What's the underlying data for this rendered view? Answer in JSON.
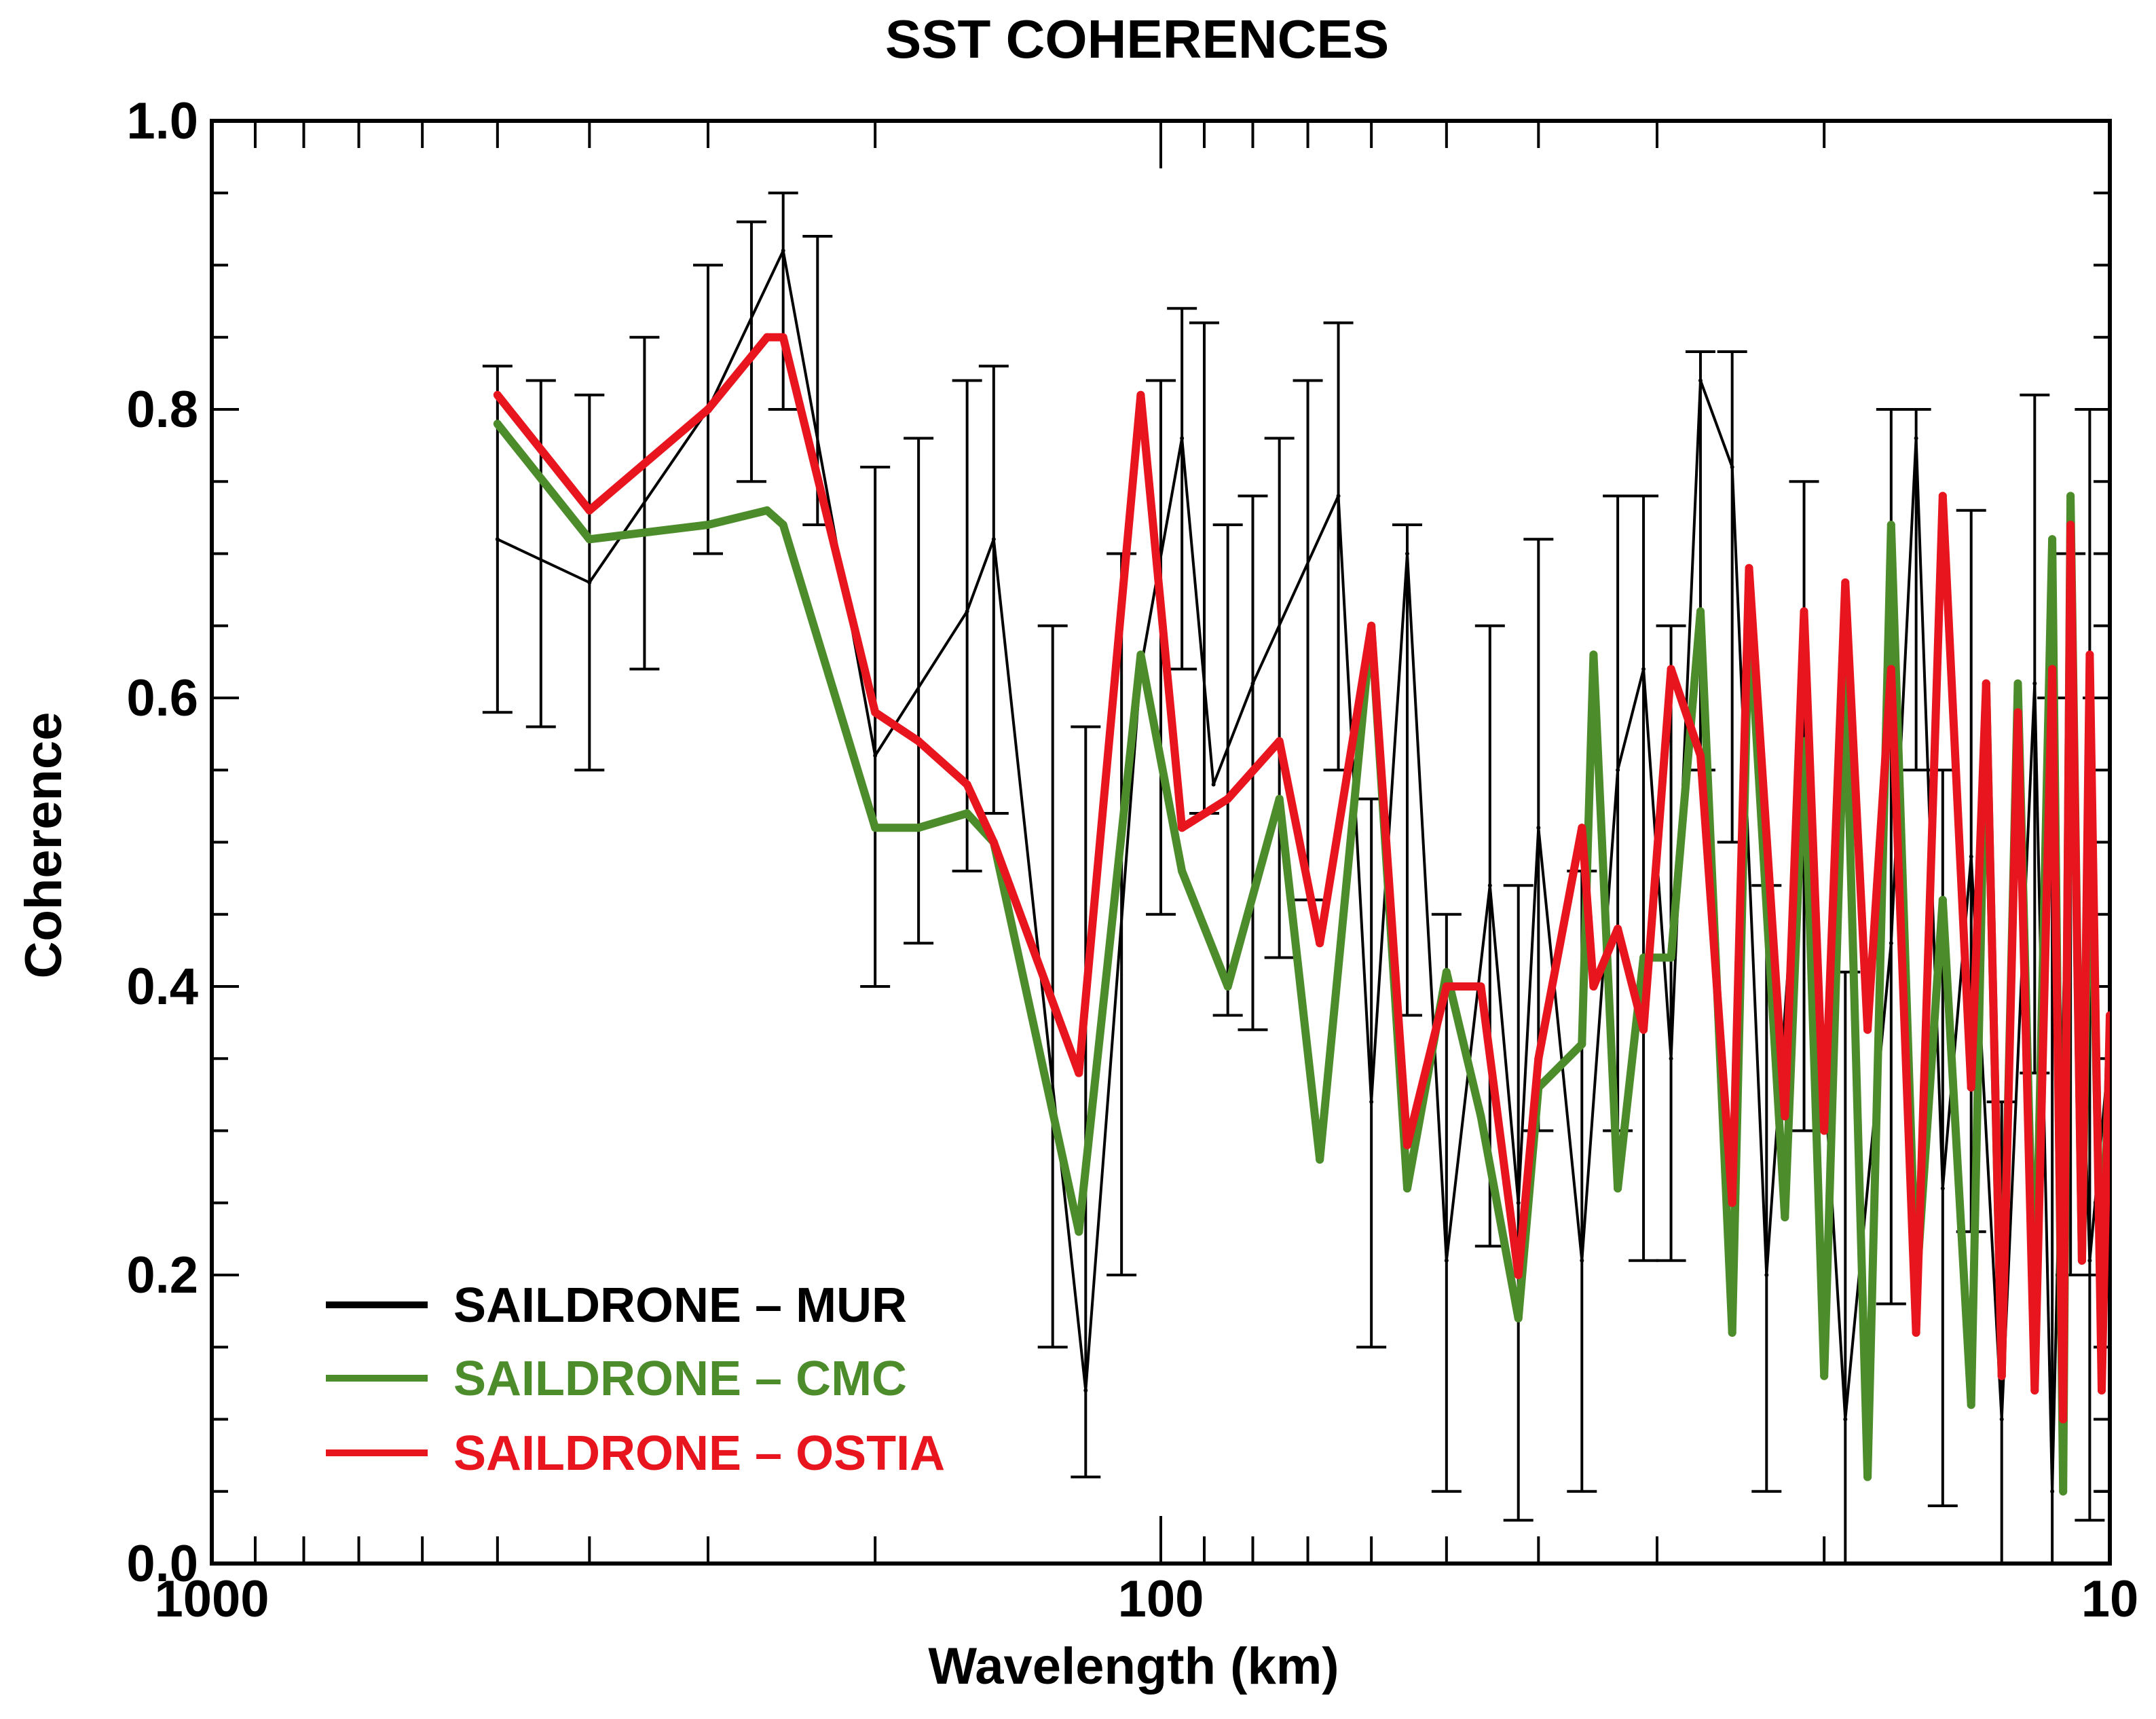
{
  "chart_data": {
    "type": "line",
    "title": "SST COHERENCES",
    "xlabel": "Wavelength (km)",
    "ylabel": "Coherence",
    "xscale": "log",
    "xlim": [
      1000,
      10
    ],
    "ylim": [
      0.0,
      1.0
    ],
    "x_ticks": [
      {
        "value": 1000,
        "label": "1000"
      },
      {
        "value": 100,
        "label": "100"
      },
      {
        "value": 10,
        "label": "10"
      }
    ],
    "y_ticks": [
      {
        "value": 0.0,
        "label": "0.0"
      },
      {
        "value": 0.2,
        "label": "0.2"
      },
      {
        "value": 0.4,
        "label": "0.4"
      },
      {
        "value": 0.6,
        "label": "0.6"
      },
      {
        "value": 0.8,
        "label": "0.8"
      },
      {
        "value": 1.0,
        "label": "1.0"
      }
    ],
    "legend_position": "bottom-left",
    "series": [
      {
        "name": "SAILDRONE – MUR",
        "color": "#000000",
        "error_bars": true,
        "points": [
          [
            500,
            0.71
          ],
          [
            400,
            0.68
          ],
          [
            300,
            0.8
          ],
          [
            250,
            0.91
          ],
          [
            200,
            0.56
          ],
          [
            160,
            0.66
          ],
          [
            150,
            0.71
          ],
          [
            120,
            0.12
          ],
          [
            105,
            0.62
          ],
          [
            95,
            0.78
          ],
          [
            88,
            0.54
          ],
          [
            80,
            0.61
          ],
          [
            65,
            0.74
          ],
          [
            60,
            0.32
          ],
          [
            55,
            0.7
          ],
          [
            50,
            0.21
          ],
          [
            45,
            0.47
          ],
          [
            42,
            0.25
          ],
          [
            40,
            0.51
          ],
          [
            36,
            0.21
          ],
          [
            33,
            0.55
          ],
          [
            31,
            0.62
          ],
          [
            29,
            0.35
          ],
          [
            27,
            0.82
          ],
          [
            25,
            0.76
          ],
          [
            23,
            0.2
          ],
          [
            21,
            0.57
          ],
          [
            19,
            0.1
          ],
          [
            17,
            0.43
          ],
          [
            16,
            0.78
          ],
          [
            15,
            0.26
          ],
          [
            14,
            0.49
          ],
          [
            13,
            0.1
          ],
          [
            12,
            0.61
          ],
          [
            11.5,
            0.05
          ],
          [
            11,
            0.6
          ],
          [
            10.5,
            0.21
          ],
          [
            10,
            0.36
          ]
        ],
        "errors": [
          [
            500,
            0.59,
            0.83
          ],
          [
            450,
            0.58,
            0.82
          ],
          [
            400,
            0.55,
            0.81
          ],
          [
            350,
            0.62,
            0.85
          ],
          [
            300,
            0.7,
            0.9
          ],
          [
            270,
            0.75,
            0.93
          ],
          [
            250,
            0.8,
            0.95
          ],
          [
            230,
            0.72,
            0.92
          ],
          [
            200,
            0.4,
            0.76
          ],
          [
            180,
            0.43,
            0.78
          ],
          [
            160,
            0.48,
            0.82
          ],
          [
            150,
            0.52,
            0.83
          ],
          [
            130,
            0.15,
            0.65
          ],
          [
            120,
            0.06,
            0.58
          ],
          [
            110,
            0.2,
            0.7
          ],
          [
            100,
            0.45,
            0.82
          ],
          [
            95,
            0.62,
            0.87
          ],
          [
            90,
            0.52,
            0.86
          ],
          [
            85,
            0.38,
            0.72
          ],
          [
            80,
            0.37,
            0.74
          ],
          [
            75,
            0.42,
            0.78
          ],
          [
            70,
            0.46,
            0.82
          ],
          [
            65,
            0.55,
            0.86
          ],
          [
            60,
            0.15,
            0.53
          ],
          [
            55,
            0.38,
            0.72
          ],
          [
            50,
            0.05,
            0.45
          ],
          [
            45,
            0.22,
            0.65
          ],
          [
            42,
            0.03,
            0.47
          ],
          [
            40,
            0.3,
            0.71
          ],
          [
            36,
            0.05,
            0.48
          ],
          [
            33,
            0.3,
            0.74
          ],
          [
            31,
            0.21,
            0.74
          ],
          [
            29,
            0.21,
            0.65
          ],
          [
            27,
            0.55,
            0.84
          ],
          [
            25,
            0.5,
            0.84
          ],
          [
            23,
            0.05,
            0.47
          ],
          [
            21,
            0.3,
            0.75
          ],
          [
            19,
            0.0,
            0.41
          ],
          [
            17,
            0.18,
            0.8
          ],
          [
            16,
            0.55,
            0.8
          ],
          [
            15,
            0.04,
            0.55
          ],
          [
            14,
            0.23,
            0.73
          ],
          [
            13,
            0.0,
            0.32
          ],
          [
            12,
            0.34,
            0.81
          ],
          [
            11.5,
            0.0,
            0.6
          ],
          [
            11,
            0.2,
            0.7
          ],
          [
            10.5,
            0.03,
            0.8
          ],
          [
            10,
            0.05,
            0.7
          ]
        ]
      },
      {
        "name": "SAILDRONE – CMC",
        "color": "#4c8c2b",
        "points": [
          [
            500,
            0.79
          ],
          [
            400,
            0.71
          ],
          [
            300,
            0.72
          ],
          [
            260,
            0.73
          ],
          [
            250,
            0.72
          ],
          [
            200,
            0.51
          ],
          [
            180,
            0.51
          ],
          [
            160,
            0.52
          ],
          [
            150,
            0.5
          ],
          [
            122,
            0.23
          ],
          [
            105,
            0.63
          ],
          [
            95,
            0.48
          ],
          [
            85,
            0.4
          ],
          [
            75,
            0.53
          ],
          [
            68,
            0.28
          ],
          [
            60,
            0.65
          ],
          [
            55,
            0.26
          ],
          [
            50,
            0.41
          ],
          [
            46,
            0.31
          ],
          [
            42,
            0.17
          ],
          [
            40,
            0.33
          ],
          [
            36,
            0.36
          ],
          [
            35,
            0.63
          ],
          [
            33,
            0.26
          ],
          [
            31,
            0.42
          ],
          [
            29,
            0.42
          ],
          [
            27,
            0.66
          ],
          [
            25,
            0.16
          ],
          [
            24,
            0.66
          ],
          [
            22,
            0.24
          ],
          [
            21,
            0.57
          ],
          [
            20,
            0.13
          ],
          [
            19,
            0.62
          ],
          [
            18,
            0.06
          ],
          [
            17,
            0.72
          ],
          [
            16,
            0.19
          ],
          [
            15,
            0.46
          ],
          [
            14,
            0.11
          ],
          [
            13.5,
            0.61
          ],
          [
            13,
            0.13
          ],
          [
            12.5,
            0.61
          ],
          [
            12,
            0.16
          ],
          [
            11.5,
            0.71
          ],
          [
            11.2,
            0.05
          ],
          [
            11,
            0.74
          ],
          [
            10.7,
            0.21
          ],
          [
            10.5,
            0.55
          ],
          [
            10.2,
            0.17
          ],
          [
            10,
            0.37
          ]
        ]
      },
      {
        "name": "SAILDRONE – OSTIA",
        "color": "#e8141e",
        "points": [
          [
            500,
            0.81
          ],
          [
            400,
            0.73
          ],
          [
            300,
            0.8
          ],
          [
            260,
            0.85
          ],
          [
            250,
            0.85
          ],
          [
            200,
            0.59
          ],
          [
            180,
            0.57
          ],
          [
            160,
            0.54
          ],
          [
            150,
            0.5
          ],
          [
            122,
            0.34
          ],
          [
            105,
            0.81
          ],
          [
            95,
            0.51
          ],
          [
            85,
            0.53
          ],
          [
            75,
            0.57
          ],
          [
            68,
            0.43
          ],
          [
            60,
            0.65
          ],
          [
            55,
            0.29
          ],
          [
            50,
            0.4
          ],
          [
            46,
            0.4
          ],
          [
            42,
            0.2
          ],
          [
            40,
            0.35
          ],
          [
            36,
            0.51
          ],
          [
            35,
            0.4
          ],
          [
            33,
            0.44
          ],
          [
            31,
            0.37
          ],
          [
            29,
            0.62
          ],
          [
            27,
            0.56
          ],
          [
            25,
            0.25
          ],
          [
            24,
            0.69
          ],
          [
            22,
            0.31
          ],
          [
            21,
            0.66
          ],
          [
            20,
            0.3
          ],
          [
            19,
            0.68
          ],
          [
            18,
            0.37
          ],
          [
            17,
            0.62
          ],
          [
            16,
            0.16
          ],
          [
            15,
            0.74
          ],
          [
            14,
            0.33
          ],
          [
            13.5,
            0.61
          ],
          [
            13,
            0.13
          ],
          [
            12.5,
            0.59
          ],
          [
            12,
            0.12
          ],
          [
            11.5,
            0.62
          ],
          [
            11.2,
            0.1
          ],
          [
            11,
            0.72
          ],
          [
            10.7,
            0.21
          ],
          [
            10.5,
            0.63
          ],
          [
            10.2,
            0.12
          ],
          [
            10,
            0.38
          ]
        ]
      }
    ]
  }
}
